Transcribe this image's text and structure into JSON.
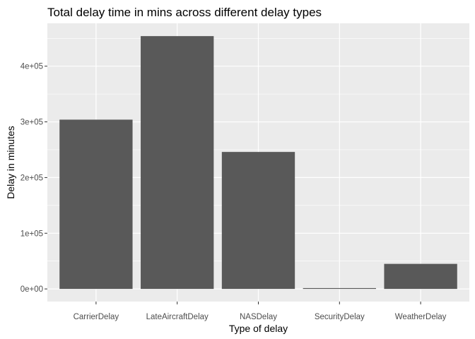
{
  "chart_data": {
    "type": "bar",
    "title": "Total delay time in mins across different delay types",
    "xlabel": "Type of delay",
    "ylabel": "Delay in minutes",
    "categories": [
      "CarrierDelay",
      "LateAircraftDelay",
      "NASDelay",
      "SecurityDelay",
      "WeatherDelay"
    ],
    "values": [
      304000,
      454000,
      246000,
      1500,
      45000
    ],
    "ylim": [
      -22700,
      477000
    ],
    "y_ticks": [
      0,
      100000,
      200000,
      300000,
      400000
    ],
    "y_tick_labels": [
      "0e+00",
      "1e+05",
      "2e+05",
      "3e+05",
      "4e+05"
    ],
    "grid": true,
    "colors": {
      "panel_background": "#ebebeb",
      "grid_major": "#ffffff",
      "bar_fill": "#595959",
      "tick_text": "#4d4d4d"
    }
  }
}
